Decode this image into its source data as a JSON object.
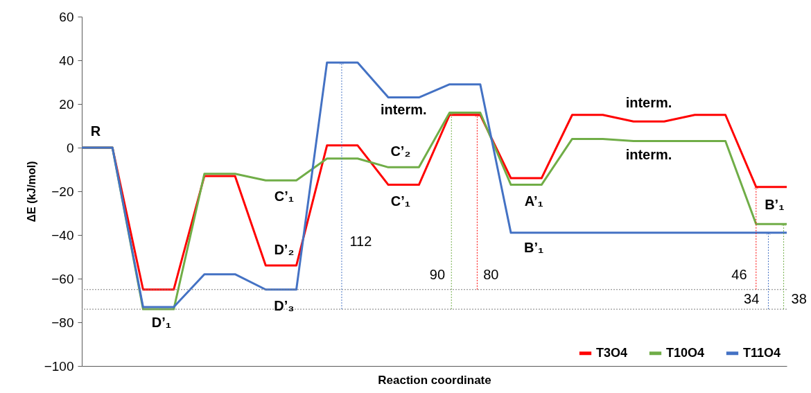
{
  "chart_data": {
    "type": "line",
    "xlabel": "Reaction coordinate",
    "ylabel": "ΔE (kJ/mol)",
    "categories": [
      null,
      null,
      null,
      null,
      null,
      null,
      null,
      null,
      null,
      null,
      null,
      null,
      null,
      null,
      null,
      null,
      null,
      null,
      null,
      null,
      null,
      null,
      null,
      null
    ],
    "series": [
      {
        "name": "T3O4",
        "color": "#ff0000",
        "values": [
          0,
          0,
          -65,
          -65,
          -13,
          -13,
          -54,
          -54,
          1,
          1,
          -17,
          -17,
          15,
          15,
          -14,
          -14,
          15,
          15,
          12,
          12,
          15,
          15,
          -18,
          -18
        ]
      },
      {
        "name": "T10O4",
        "color": "#70ad47",
        "values": [
          0,
          0,
          -74,
          -74,
          -12,
          -12,
          -15,
          -15,
          -5,
          -5,
          -9,
          -9,
          16,
          16,
          -17,
          -17,
          4,
          4,
          3,
          3,
          3,
          3,
          -35,
          -35
        ]
      },
      {
        "name": "T11O4",
        "color": "#4472c4",
        "values": [
          0,
          0,
          -73,
          -73,
          -58,
          -58,
          -65,
          -65,
          39,
          39,
          23,
          23,
          29,
          29,
          -39,
          -39,
          -39,
          -39,
          -39,
          -39,
          -39,
          -39,
          -39,
          -39
        ]
      }
    ],
    "ylim": [
      -100,
      60
    ],
    "yticks": [
      -100,
      -80,
      -60,
      -40,
      -20,
      0,
      20,
      40,
      60
    ],
    "legend": "bottom right",
    "ref_lines": [
      {
        "axis": "y",
        "value": -65,
        "color": "#7f7f7f",
        "line_style": "dotted"
      },
      {
        "axis": "y",
        "value": -74,
        "color": "#7f7f7f",
        "line_style": "dotted"
      }
    ],
    "annotations": [
      {
        "text": "R",
        "y": 0
      },
      {
        "text": "D’₁",
        "y": -74
      },
      {
        "text": "C’₁",
        "y": -15
      },
      {
        "text": "D’₂",
        "y": -54
      },
      {
        "text": "D’₃",
        "y": -65
      },
      {
        "text": "C’₁",
        "y": -17
      },
      {
        "text": "C’₂",
        "y": -9
      },
      {
        "text": "interm.",
        "y": 23
      },
      {
        "text": "A’₁",
        "y": -17
      },
      {
        "text": "B’₁",
        "y": -39
      },
      {
        "text": "interm.",
        "y": 12
      },
      {
        "text": "interm.",
        "y": 3
      },
      {
        "text": "B’₁",
        "y": -18
      },
      "112",
      "90",
      "80",
      "46",
      "34",
      "38"
    ]
  }
}
